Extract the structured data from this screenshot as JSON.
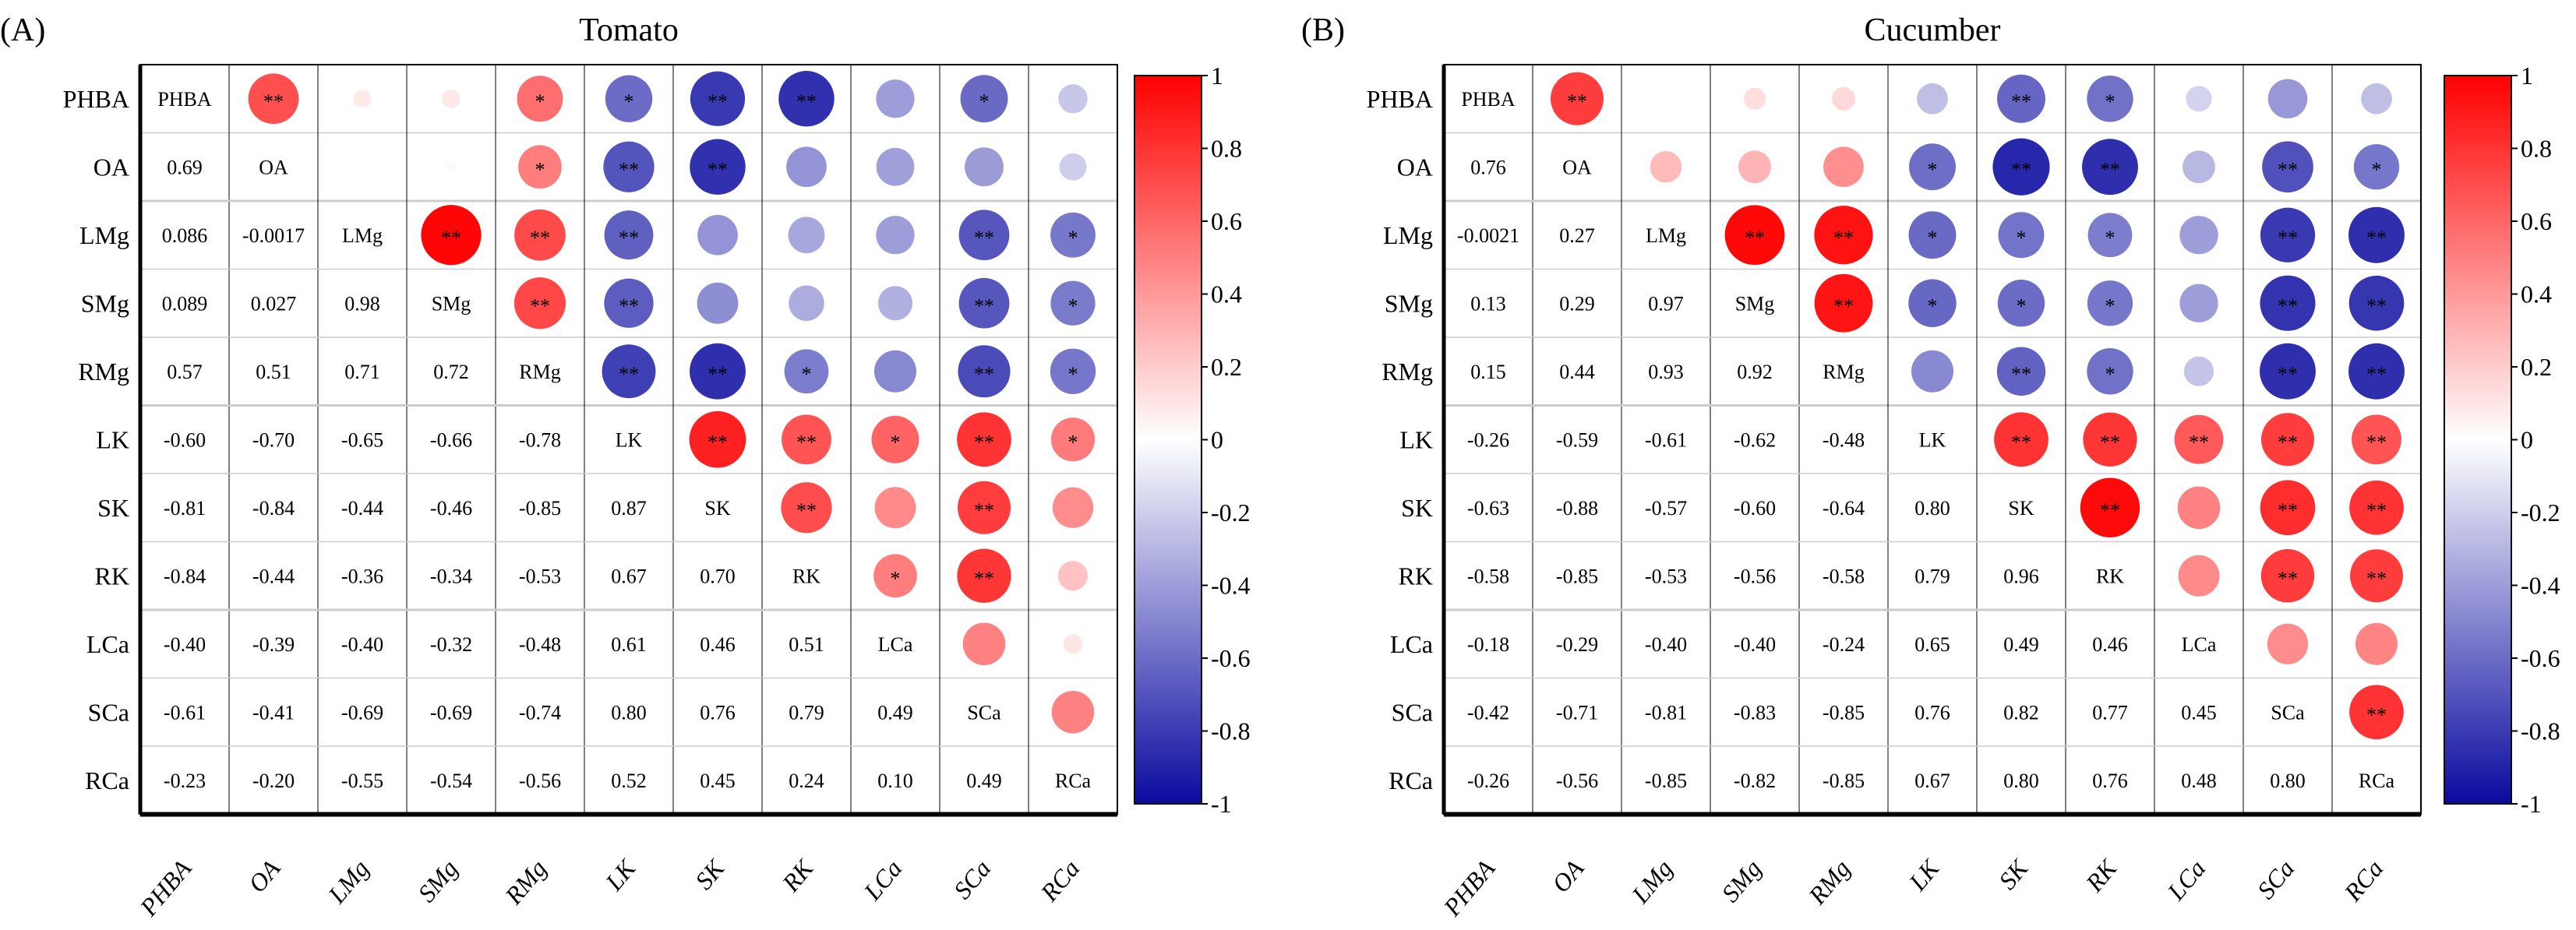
{
  "colors": {
    "neg": "#0a0aa0",
    "mid": "#ffffff",
    "pos": "#ff0000",
    "grid_h": "#cccccc",
    "grid_v": "#000000"
  },
  "chart_data": [
    {
      "type": "heatmap",
      "panel_label": "(A)",
      "title": "Tomato",
      "variables": [
        "PHBA",
        "OA",
        "LMg",
        "SMg",
        "RMg",
        "LK",
        "SK",
        "RK",
        "LCa",
        "SCa",
        "RCa"
      ],
      "lower_values": [
        [],
        [
          "0.69"
        ],
        [
          "0.086",
          "-0.0017"
        ],
        [
          "0.089",
          "0.027",
          "0.98"
        ],
        [
          "0.57",
          "0.51",
          "0.71",
          "0.72"
        ],
        [
          "-0.60",
          "-0.70",
          "-0.65",
          "-0.66",
          "-0.78"
        ],
        [
          "-0.81",
          "-0.84",
          "-0.44",
          "-0.46",
          "-0.85",
          "0.87"
        ],
        [
          "-0.84",
          "-0.44",
          "-0.36",
          "-0.34",
          "-0.53",
          "0.67",
          "0.70"
        ],
        [
          "-0.40",
          "-0.39",
          "-0.40",
          "-0.32",
          "-0.48",
          "0.61",
          "0.46",
          "0.51"
        ],
        [
          "-0.61",
          "-0.41",
          "-0.69",
          "-0.69",
          "-0.74",
          "0.80",
          "0.76",
          "0.79",
          "0.49"
        ],
        [
          "-0.23",
          "-0.20",
          "-0.55",
          "-0.54",
          "-0.56",
          "0.52",
          "0.45",
          "0.24",
          "0.10",
          "0.49"
        ]
      ],
      "significance": [
        [],
        [
          "**"
        ],
        [
          "",
          ""
        ],
        [
          "",
          "",
          "**"
        ],
        [
          "*",
          "*",
          "**",
          "**"
        ],
        [
          "*",
          "**",
          "**",
          "**",
          "**"
        ],
        [
          "**",
          "**",
          "",
          "",
          "**",
          "**"
        ],
        [
          "**",
          "",
          "",
          "",
          "*",
          "**",
          "**"
        ],
        [
          "",
          "",
          "",
          "",
          "",
          "*",
          "",
          "*"
        ],
        [
          "*",
          "",
          "**",
          "**",
          "**",
          "**",
          "**",
          "**",
          ""
        ],
        [
          "",
          "",
          "*",
          "*",
          "*",
          "*",
          "",
          "",
          "",
          ""
        ]
      ],
      "colorbar": {
        "range": [
          -1,
          1
        ],
        "ticks": [
          "1",
          "0.8",
          "0.6",
          "0.4",
          "0.2",
          "0",
          "-0.2",
          "-0.4",
          "-0.6",
          "-0.8",
          "-1"
        ]
      }
    },
    {
      "type": "heatmap",
      "panel_label": "(B)",
      "title": "Cucumber",
      "variables": [
        "PHBA",
        "OA",
        "LMg",
        "SMg",
        "RMg",
        "LK",
        "SK",
        "RK",
        "LCa",
        "SCa",
        "RCa"
      ],
      "lower_values": [
        [],
        [
          "0.76"
        ],
        [
          "-0.0021",
          "0.27"
        ],
        [
          "0.13",
          "0.29",
          "0.97"
        ],
        [
          "0.15",
          "0.44",
          "0.93",
          "0.92"
        ],
        [
          "-0.26",
          "-0.59",
          "-0.61",
          "-0.62",
          "-0.48"
        ],
        [
          "-0.63",
          "-0.88",
          "-0.57",
          "-0.60",
          "-0.64",
          "0.80"
        ],
        [
          "-0.58",
          "-0.85",
          "-0.53",
          "-0.56",
          "-0.58",
          "0.79",
          "0.96"
        ],
        [
          "-0.18",
          "-0.29",
          "-0.40",
          "-0.40",
          "-0.24",
          "0.65",
          "0.49",
          "0.46"
        ],
        [
          "-0.42",
          "-0.71",
          "-0.81",
          "-0.83",
          "-0.85",
          "0.76",
          "0.82",
          "0.77",
          "0.45"
        ],
        [
          "-0.26",
          "-0.56",
          "-0.85",
          "-0.82",
          "-0.85",
          "0.67",
          "0.80",
          "0.76",
          "0.48",
          "0.80"
        ]
      ],
      "significance": [
        [],
        [
          "**"
        ],
        [
          "",
          ""
        ],
        [
          "",
          "",
          "**"
        ],
        [
          "",
          "",
          "**",
          "**"
        ],
        [
          "",
          "*",
          "*",
          "*",
          ""
        ],
        [
          "**",
          "**",
          "*",
          "*",
          "**",
          "**"
        ],
        [
          "*",
          "**",
          "*",
          "*",
          "*",
          "**",
          "**"
        ],
        [
          "",
          "",
          "",
          "",
          "",
          "**",
          "",
          ""
        ],
        [
          "",
          "**",
          "**",
          "**",
          "**",
          "**",
          "**",
          "**",
          ""
        ],
        [
          "",
          "*",
          "**",
          "**",
          "**",
          "**",
          "**",
          "**",
          "",
          "**"
        ]
      ],
      "colorbar": {
        "range": [
          -1,
          1
        ],
        "ticks": [
          "1",
          "0.8",
          "0.6",
          "0.4",
          "0.2",
          "0",
          "-0.2",
          "-0.4",
          "-0.6",
          "-0.8",
          "-1"
        ]
      }
    }
  ]
}
